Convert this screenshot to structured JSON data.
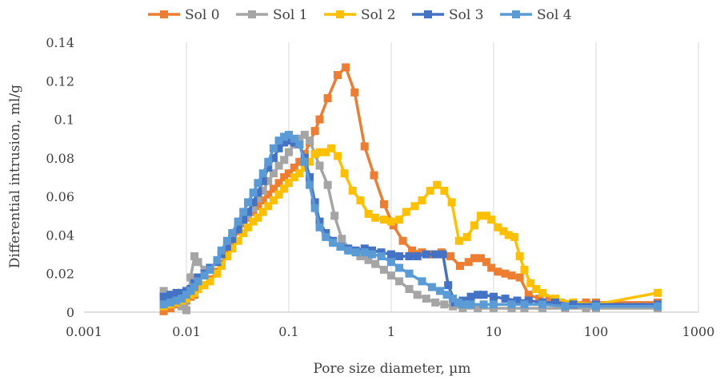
{
  "chart_data": {
    "type": "line",
    "xlabel": "Pore size diameter, µm",
    "ylabel": "Differential intrusion, ml/g",
    "xscale": "log",
    "xlim": [
      0.001,
      1000
    ],
    "ylim": [
      0,
      0.14
    ],
    "x_ticks": [
      "0.001",
      "0.01",
      "0.1",
      "1",
      "10",
      "100",
      "1000"
    ],
    "y_ticks": [
      "0",
      "0.02",
      "0.04",
      "0.06",
      "0.08",
      "0.1",
      "0.12",
      "0.14"
    ],
    "grid": "vertical",
    "legend_position": "top",
    "colors": {
      "sol0": "#ED7D31",
      "sol1": "#A5A5A5",
      "sol2": "#FFC000",
      "sol3": "#4472C4",
      "sol4": "#5B9BD5",
      "grid": "#d9d9d9",
      "axis": "#bfbfbf"
    },
    "series": [
      {
        "name": "Sol 0",
        "color": "#ED7D31",
        "x": [
          0.006,
          0.007,
          0.008,
          0.009,
          0.01,
          0.011,
          0.012,
          0.013,
          0.015,
          0.017,
          0.02,
          0.022,
          0.025,
          0.028,
          0.032,
          0.036,
          0.04,
          0.045,
          0.05,
          0.056,
          0.063,
          0.071,
          0.08,
          0.09,
          0.1,
          0.113,
          0.127,
          0.143,
          0.16,
          0.18,
          0.2,
          0.24,
          0.3,
          0.36,
          0.44,
          0.55,
          0.68,
          0.85,
          1.05,
          1.3,
          1.6,
          2.0,
          2.5,
          3.1,
          3.8,
          4.7,
          5.7,
          6.5,
          7.5,
          8.5,
          9.5,
          11,
          13,
          15,
          18,
          22,
          28,
          35,
          45,
          60,
          80,
          100,
          400
        ],
        "y": [
          0.0005,
          0.002,
          0.004,
          0.005,
          0.006,
          0.008,
          0.009,
          0.012,
          0.014,
          0.017,
          0.021,
          0.025,
          0.031,
          0.036,
          0.042,
          0.046,
          0.049,
          0.052,
          0.055,
          0.058,
          0.061,
          0.064,
          0.067,
          0.07,
          0.072,
          0.075,
          0.078,
          0.082,
          0.088,
          0.094,
          0.1,
          0.111,
          0.123,
          0.127,
          0.114,
          0.086,
          0.071,
          0.056,
          0.045,
          0.037,
          0.032,
          0.031,
          0.03,
          0.031,
          0.029,
          0.024,
          0.026,
          0.028,
          0.028,
          0.026,
          0.023,
          0.021,
          0.02,
          0.019,
          0.018,
          0.009,
          0.007,
          0.006,
          0.005,
          0.005,
          0.005,
          0.005,
          0.005
        ]
      },
      {
        "name": "Sol 1",
        "color": "#A5A5A5",
        "x": [
          0.006,
          0.007,
          0.008,
          0.009,
          0.01,
          0.011,
          0.012,
          0.013,
          0.015,
          0.017,
          0.02,
          0.022,
          0.025,
          0.028,
          0.032,
          0.036,
          0.04,
          0.045,
          0.05,
          0.056,
          0.063,
          0.071,
          0.08,
          0.09,
          0.1,
          0.113,
          0.127,
          0.143,
          0.16,
          0.18,
          0.2,
          0.24,
          0.28,
          0.33,
          0.4,
          0.5,
          0.6,
          0.7,
          0.85,
          1.0,
          1.2,
          1.5,
          1.8,
          2.2,
          2.7,
          3.3,
          4.0,
          5.0,
          7.0,
          10,
          15,
          20,
          30,
          50,
          80,
          100,
          400
        ],
        "y": [
          0.011,
          0.009,
          0.006,
          0.003,
          0.001,
          0.018,
          0.029,
          0.026,
          0.022,
          0.023,
          0.026,
          0.03,
          0.035,
          0.038,
          0.043,
          0.047,
          0.05,
          0.054,
          0.059,
          0.063,
          0.068,
          0.072,
          0.076,
          0.079,
          0.083,
          0.087,
          0.09,
          0.092,
          0.089,
          0.082,
          0.076,
          0.066,
          0.05,
          0.038,
          0.032,
          0.029,
          0.027,
          0.025,
          0.022,
          0.019,
          0.016,
          0.012,
          0.009,
          0.007,
          0.005,
          0.004,
          0.003,
          0.002,
          0.002,
          0.002,
          0.002,
          0.002,
          0.002,
          0.002,
          0.002,
          0.002,
          0.002
        ]
      },
      {
        "name": "Sol 2",
        "color": "#FFC000",
        "x": [
          0.006,
          0.007,
          0.008,
          0.009,
          0.01,
          0.011,
          0.012,
          0.013,
          0.015,
          0.017,
          0.02,
          0.022,
          0.025,
          0.028,
          0.032,
          0.036,
          0.04,
          0.045,
          0.05,
          0.056,
          0.063,
          0.071,
          0.08,
          0.09,
          0.1,
          0.113,
          0.127,
          0.143,
          0.16,
          0.18,
          0.2,
          0.23,
          0.26,
          0.3,
          0.35,
          0.42,
          0.5,
          0.6,
          0.7,
          0.85,
          1.0,
          1.2,
          1.4,
          1.7,
          2.0,
          2.4,
          2.8,
          3.3,
          3.9,
          4.6,
          5.5,
          6.5,
          7.5,
          8.5,
          9.5,
          11,
          12.5,
          14,
          16,
          18,
          20,
          23,
          26,
          30,
          40,
          60,
          100,
          400
        ],
        "y": [
          0.003,
          0.004,
          0.005,
          0.006,
          0.007,
          0.009,
          0.01,
          0.012,
          0.014,
          0.016,
          0.02,
          0.024,
          0.029,
          0.033,
          0.037,
          0.041,
          0.044,
          0.047,
          0.049,
          0.052,
          0.055,
          0.058,
          0.061,
          0.064,
          0.067,
          0.07,
          0.072,
          0.075,
          0.078,
          0.082,
          0.083,
          0.083,
          0.085,
          0.081,
          0.072,
          0.063,
          0.058,
          0.051,
          0.049,
          0.048,
          0.047,
          0.048,
          0.052,
          0.055,
          0.058,
          0.063,
          0.066,
          0.063,
          0.057,
          0.037,
          0.039,
          0.045,
          0.05,
          0.05,
          0.048,
          0.044,
          0.042,
          0.04,
          0.039,
          0.029,
          0.022,
          0.015,
          0.012,
          0.01,
          0.007,
          0.005,
          0.004,
          0.01
        ]
      },
      {
        "name": "Sol 3",
        "color": "#4472C4",
        "x": [
          0.006,
          0.007,
          0.008,
          0.009,
          0.01,
          0.011,
          0.012,
          0.013,
          0.015,
          0.017,
          0.02,
          0.022,
          0.025,
          0.028,
          0.032,
          0.036,
          0.04,
          0.045,
          0.05,
          0.056,
          0.063,
          0.071,
          0.08,
          0.09,
          0.1,
          0.113,
          0.127,
          0.143,
          0.16,
          0.18,
          0.2,
          0.23,
          0.27,
          0.32,
          0.38,
          0.45,
          0.55,
          0.65,
          0.8,
          1.0,
          1.2,
          1.5,
          1.8,
          2.2,
          2.7,
          3.2,
          3.6,
          4.2,
          5.0,
          6.0,
          7.0,
          8.0,
          10,
          13,
          17,
          22,
          30,
          40,
          60,
          100,
          400
        ],
        "y": [
          0.008,
          0.009,
          0.01,
          0.01,
          0.011,
          0.012,
          0.015,
          0.018,
          0.02,
          0.023,
          0.026,
          0.03,
          0.034,
          0.038,
          0.043,
          0.048,
          0.052,
          0.057,
          0.062,
          0.068,
          0.075,
          0.08,
          0.085,
          0.088,
          0.089,
          0.088,
          0.087,
          0.08,
          0.07,
          0.057,
          0.047,
          0.041,
          0.037,
          0.034,
          0.033,
          0.032,
          0.033,
          0.032,
          0.031,
          0.03,
          0.029,
          0.029,
          0.029,
          0.03,
          0.03,
          0.03,
          0.014,
          0.005,
          0.006,
          0.008,
          0.009,
          0.009,
          0.008,
          0.007,
          0.006,
          0.006,
          0.005,
          0.005,
          0.004,
          0.004,
          0.004
        ]
      },
      {
        "name": "Sol 4",
        "color": "#5B9BD5",
        "x": [
          0.006,
          0.007,
          0.008,
          0.009,
          0.01,
          0.011,
          0.012,
          0.013,
          0.015,
          0.017,
          0.02,
          0.022,
          0.025,
          0.028,
          0.032,
          0.036,
          0.04,
          0.045,
          0.05,
          0.056,
          0.063,
          0.071,
          0.08,
          0.09,
          0.1,
          0.113,
          0.127,
          0.143,
          0.16,
          0.18,
          0.2,
          0.23,
          0.27,
          0.32,
          0.38,
          0.45,
          0.55,
          0.65,
          0.8,
          1.0,
          1.2,
          1.5,
          2.0,
          2.5,
          3.0,
          3.5,
          4.0,
          4.5,
          5.0,
          6.0,
          8.0,
          10,
          15,
          20,
          30,
          50,
          100,
          400
        ],
        "y": [
          0.004,
          0.005,
          0.006,
          0.007,
          0.009,
          0.011,
          0.013,
          0.016,
          0.019,
          0.022,
          0.027,
          0.032,
          0.037,
          0.041,
          0.047,
          0.052,
          0.057,
          0.062,
          0.067,
          0.072,
          0.078,
          0.085,
          0.089,
          0.091,
          0.092,
          0.09,
          0.087,
          0.078,
          0.066,
          0.054,
          0.044,
          0.039,
          0.036,
          0.034,
          0.032,
          0.031,
          0.031,
          0.03,
          0.029,
          0.026,
          0.023,
          0.02,
          0.016,
          0.013,
          0.011,
          0.009,
          0.007,
          0.005,
          0.004,
          0.004,
          0.004,
          0.004,
          0.004,
          0.004,
          0.004,
          0.003,
          0.003,
          0.003
        ]
      }
    ]
  }
}
